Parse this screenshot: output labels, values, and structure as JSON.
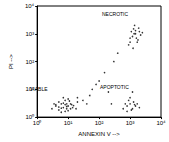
{
  "chart_data": {
    "type": "scatter",
    "x_label": "ANNEXIN V -->",
    "y_label": "PI -->",
    "annotations": [
      "VIABLE",
      "NECROTIC",
      "APOPTOTIC"
    ],
    "log": true,
    "grid": false,
    "color": "#000000",
    "marker": "circle",
    "xlim": [
      1,
      10000
    ],
    "xticks": [
      {
        "value": 1,
        "label": "10⁰"
      },
      {
        "value": 10,
        "label": "10¹"
      },
      {
        "value": 100,
        "label": "10²"
      },
      {
        "value": 1000,
        "label": "10³"
      },
      {
        "value": 10000,
        "label": "10⁴"
      }
    ],
    "ylim": [
      1,
      10000
    ],
    "yticks": [
      {
        "value": 1,
        "label": "10⁰"
      },
      {
        "value": 10,
        "label": "10¹"
      },
      {
        "value": 100,
        "label": "10²"
      },
      {
        "value": 1000,
        "label": "10³"
      },
      {
        "value": 10000,
        "label": "10⁴"
      }
    ],
    "x": [
      3,
      4,
      5,
      6,
      7,
      8,
      9,
      10,
      12,
      14,
      5,
      6,
      8,
      10,
      4,
      7,
      9,
      11,
      15,
      18,
      6,
      8,
      3.5,
      12,
      20,
      7,
      9,
      5,
      10,
      13,
      600,
      800,
      1000,
      1200,
      1500,
      900,
      1100,
      1300,
      700,
      2000,
      1000,
      1400,
      800,
      1700,
      1200,
      1000,
      1200,
      1500,
      1800,
      2000,
      1300,
      1600,
      900,
      1100,
      2200,
      1400,
      1700,
      1250,
      1900,
      1000,
      1500,
      2500,
      1350,
      20,
      40,
      60,
      100,
      150,
      200,
      300,
      50,
      80,
      400,
      30,
      250
    ],
    "values": [
      2,
      2.5,
      1.8,
      3,
      2.2,
      2.8,
      2,
      2.5,
      3,
      2.2,
      3.5,
      1.5,
      4,
      1.7,
      2.8,
      3.2,
      2.4,
      3.8,
      2.6,
      2,
      2.1,
      1.6,
      3,
      2,
      3.5,
      5,
      3,
      2.3,
      4.5,
      2.8,
      2,
      2.5,
      3,
      2,
      2.5,
      4,
      1.8,
      3.5,
      3,
      2.2,
      5,
      2.8,
      1.6,
      3,
      8,
      500,
      800,
      1000,
      600,
      1200,
      1500,
      700,
      400,
      1200,
      900,
      2000,
      500,
      300,
      1600,
      700,
      1300,
      1100,
      1000,
      5,
      3,
      10,
      20,
      40,
      8,
      100,
      6,
      15,
      200,
      4,
      3
    ]
  }
}
